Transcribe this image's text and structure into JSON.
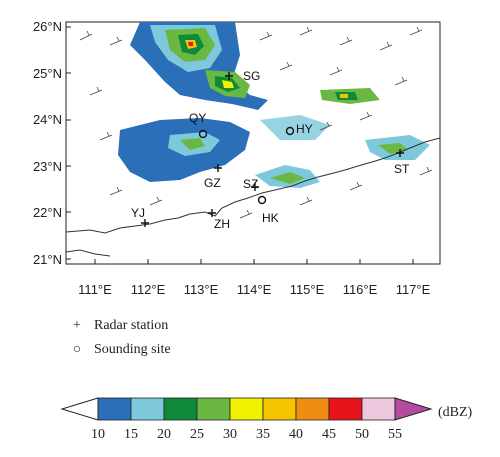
{
  "map": {
    "lat_labels": [
      "26°N",
      "25°N",
      "24°N",
      "23°N",
      "22°N",
      "21°N"
    ],
    "lon_labels": [
      "111°E",
      "112°E",
      "113°E",
      "114°E",
      "115°E",
      "116°E",
      "117°E"
    ],
    "stations": [
      {
        "code": "SG",
        "kind": "radar"
      },
      {
        "code": "QY",
        "kind": "sounding"
      },
      {
        "code": "HY",
        "kind": "sounding"
      },
      {
        "code": "GZ",
        "kind": "radar"
      },
      {
        "code": "SZ",
        "kind": "radar"
      },
      {
        "code": "ST",
        "kind": "radar"
      },
      {
        "code": "YJ",
        "kind": "radar"
      },
      {
        "code": "ZH",
        "kind": "radar"
      },
      {
        "code": "HK",
        "kind": "sounding"
      }
    ]
  },
  "legend": {
    "radar_symbol": "+",
    "radar_label": "Radar station",
    "sounding_symbol": "○",
    "sounding_label": "Sounding site"
  },
  "colorbar": {
    "unit": "(dBZ)",
    "ticks": [
      "10",
      "15",
      "20",
      "25",
      "30",
      "35",
      "40",
      "45",
      "50",
      "55"
    ],
    "colors": [
      "#2a6fb8",
      "#7ec8dc",
      "#0f8a3a",
      "#6ab842",
      "#f0f000",
      "#f5c400",
      "#ef8c12",
      "#e8141c",
      "#ecc8dc",
      "#b24ca0"
    ]
  }
}
